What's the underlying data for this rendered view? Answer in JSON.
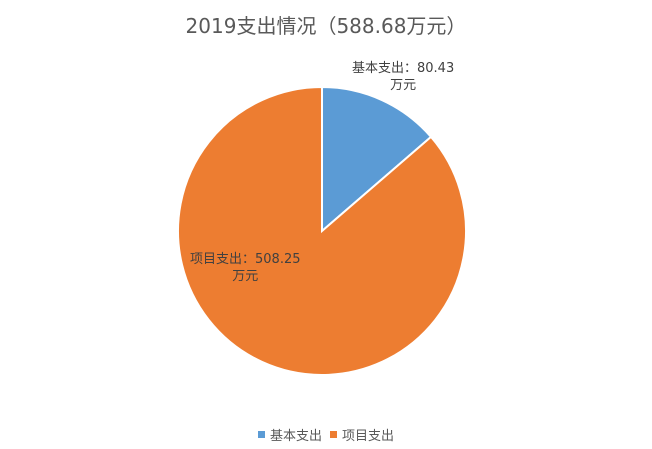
{
  "chart_data": {
    "type": "pie",
    "title": "2019支出情况（588.68万元）",
    "unit": "万元",
    "slices": [
      {
        "name": "基本支出",
        "value": 80.43,
        "color": "#5B9BD5",
        "label_line1": "基本支出：80.43",
        "label_line2": "万元"
      },
      {
        "name": "项目支出",
        "value": 508.25,
        "color": "#ED7D31",
        "label_line1": "项目支出：508.25",
        "label_line2": "万元"
      }
    ],
    "start_angle": "12 o'clock, clockwise",
    "legend_position": "bottom"
  }
}
